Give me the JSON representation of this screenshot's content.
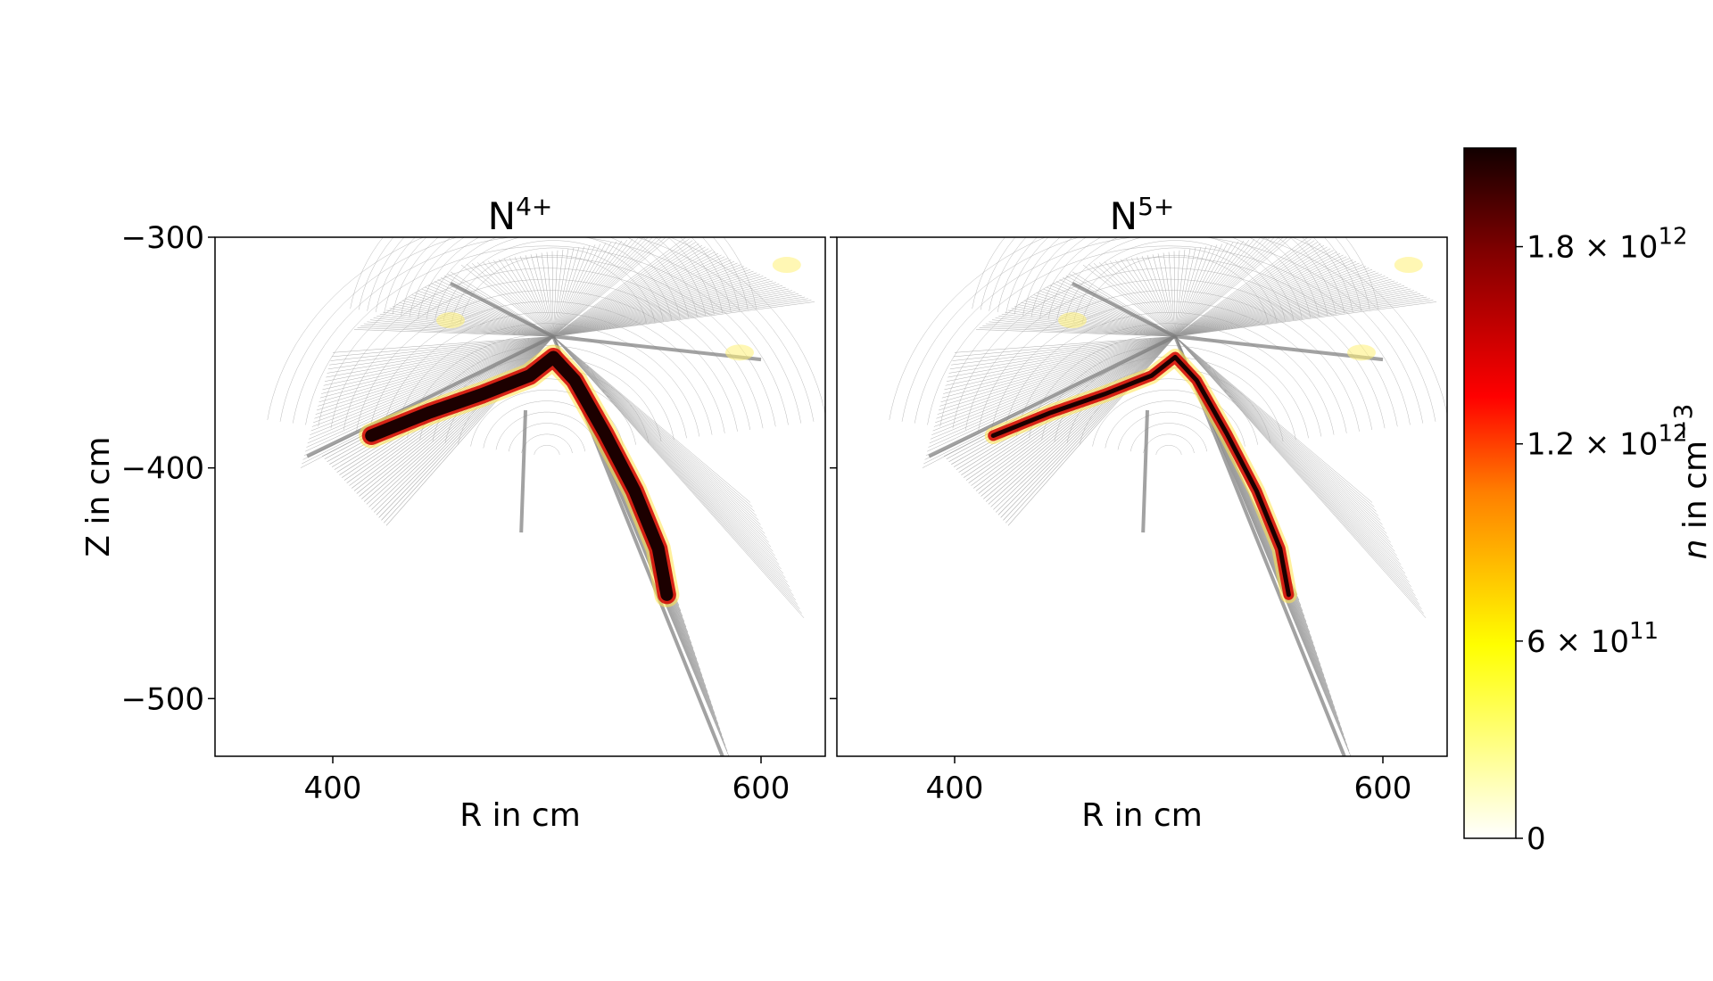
{
  "chart_data": [
    {
      "type": "heatmap",
      "title_base": "N",
      "title_sup": "4+",
      "xlabel": "R in cm",
      "ylabel": "Z in cm",
      "xlim": [
        345,
        630
      ],
      "ylim": [
        -525,
        -300
      ],
      "xticks": [
        400,
        600
      ],
      "xtick_labels": [
        "400",
        "600"
      ],
      "yticks": [
        -300,
        -400,
        -500
      ],
      "ytick_labels": [
        "−300",
        "−400",
        "−500"
      ],
      "grid": false,
      "annotation": "computational mesh of a divertor region; density concentrated along the separatrix leg",
      "peak_density": 2000000000000.0
    },
    {
      "type": "heatmap",
      "title_base": "N",
      "title_sup": "5+",
      "xlabel": "R in cm",
      "ylabel": "",
      "xlim": [
        345,
        630
      ],
      "ylim": [
        -525,
        -300
      ],
      "xticks": [
        400,
        600
      ],
      "xtick_labels": [
        "400",
        "600"
      ],
      "yticks": [
        -300,
        -400,
        -500
      ],
      "ytick_labels": [
        "",
        "",
        ""
      ],
      "grid": false,
      "peak_density": 2000000000000.0
    }
  ],
  "colorbar": {
    "label_italic": "n",
    "label_rest": " in cm",
    "label_sup": "−3",
    "min": 0,
    "max": 2100000000000.0,
    "ticks": [
      0,
      600000000000.0,
      1200000000000.0,
      1800000000000.0
    ],
    "tick_labels": [
      {
        "main": "0",
        "sup": ""
      },
      {
        "main": "6 × 10",
        "sup": "11"
      },
      {
        "main": "1.2 × 10",
        "sup": "12"
      },
      {
        "main": "1.8 × 10",
        "sup": "12"
      }
    ],
    "colormap": "hot_r",
    "colors": [
      "#ffffff",
      "#ffff00",
      "#ff8000",
      "#ff0000",
      "#800000",
      "#120000"
    ]
  }
}
